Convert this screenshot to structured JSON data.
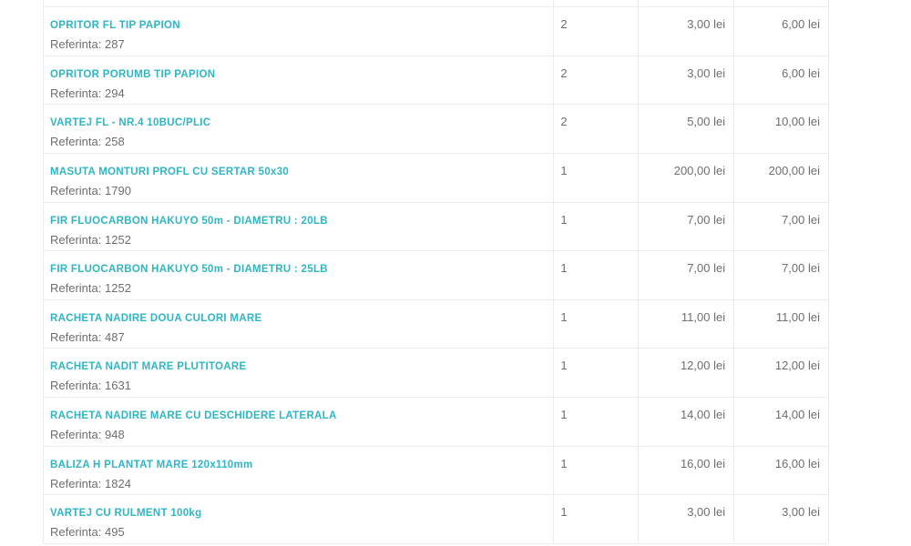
{
  "colors": {
    "accent": "#2fb5c4",
    "muted_text": "#6e6e6e",
    "border": "#ececec",
    "background": "#ffffff"
  },
  "table": {
    "reference_label": "Referinta:",
    "currency_suffix": "lei",
    "rows": [
      {
        "name": "OPRITOR FL TIP PAPION",
        "reference": "287",
        "quantity": "2",
        "unit_price": "3,00 lei",
        "total": "6,00 lei"
      },
      {
        "name": "OPRITOR PORUMB TIP PAPION",
        "reference": "294",
        "quantity": "2",
        "unit_price": "3,00 lei",
        "total": "6,00 lei"
      },
      {
        "name": "VARTEJ FL - NR.4 10BUC/PLIC",
        "reference": "258",
        "quantity": "2",
        "unit_price": "5,00 lei",
        "total": "10,00 lei"
      },
      {
        "name": "MASUTA MONTURI PROFL CU SERTAR 50x30",
        "reference": "1790",
        "quantity": "1",
        "unit_price": "200,00 lei",
        "total": "200,00 lei"
      },
      {
        "name": "FIR FLUOCARBON HAKUYO 50m - DIAMETRU : 20LB",
        "reference": "1252",
        "quantity": "1",
        "unit_price": "7,00 lei",
        "total": "7,00 lei"
      },
      {
        "name": "FIR FLUOCARBON HAKUYO 50m - DIAMETRU : 25LB",
        "reference": "1252",
        "quantity": "1",
        "unit_price": "7,00 lei",
        "total": "7,00 lei"
      },
      {
        "name": "RACHETA NADIRE DOUA CULORI MARE",
        "reference": "487",
        "quantity": "1",
        "unit_price": "11,00 lei",
        "total": "11,00 lei"
      },
      {
        "name": "RACHETA NADIT MARE PLUTITOARE",
        "reference": "1631",
        "quantity": "1",
        "unit_price": "12,00 lei",
        "total": "12,00 lei"
      },
      {
        "name": "RACHETA NADIRE MARE CU DESCHIDERE LATERALA",
        "reference": "948",
        "quantity": "1",
        "unit_price": "14,00 lei",
        "total": "14,00 lei"
      },
      {
        "name": "BALIZA H PLANTAT MARE 120x110mm",
        "reference": "1824",
        "quantity": "1",
        "unit_price": "16,00 lei",
        "total": "16,00 lei"
      },
      {
        "name": "VARTEJ CU RULMENT 100kg",
        "reference": "495",
        "quantity": "1",
        "unit_price": "3,00 lei",
        "total": "3,00 lei"
      }
    ]
  }
}
